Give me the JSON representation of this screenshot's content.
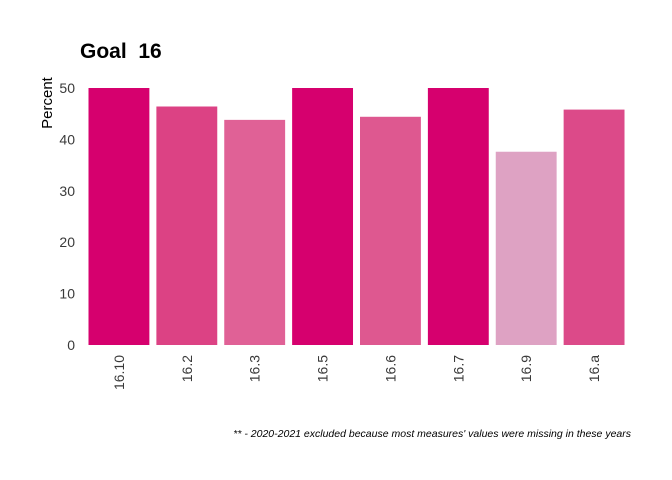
{
  "chart_data": {
    "type": "bar",
    "title": "Goal  16",
    "xlabel": "",
    "ylabel": "Percent",
    "ylim": [
      0,
      50
    ],
    "yticks": [
      0,
      10,
      20,
      30,
      40,
      50
    ],
    "grid": false,
    "legend": "none",
    "categories": [
      "16.10",
      "16.2",
      "16.3",
      "16.5",
      "16.6",
      "16.7",
      "16.9",
      "16.a"
    ],
    "values": [
      50,
      46.4,
      43.8,
      50,
      44.4,
      50,
      37.6,
      45.8
    ],
    "colors": [
      "#d6006e",
      "#dc4284",
      "#e06196",
      "#d6006e",
      "#de5890",
      "#d6006e",
      "#dea2c3",
      "#dc4a89"
    ],
    "footnote": "** - 2020-2021 excluded because most measures' values were missing in these years"
  }
}
